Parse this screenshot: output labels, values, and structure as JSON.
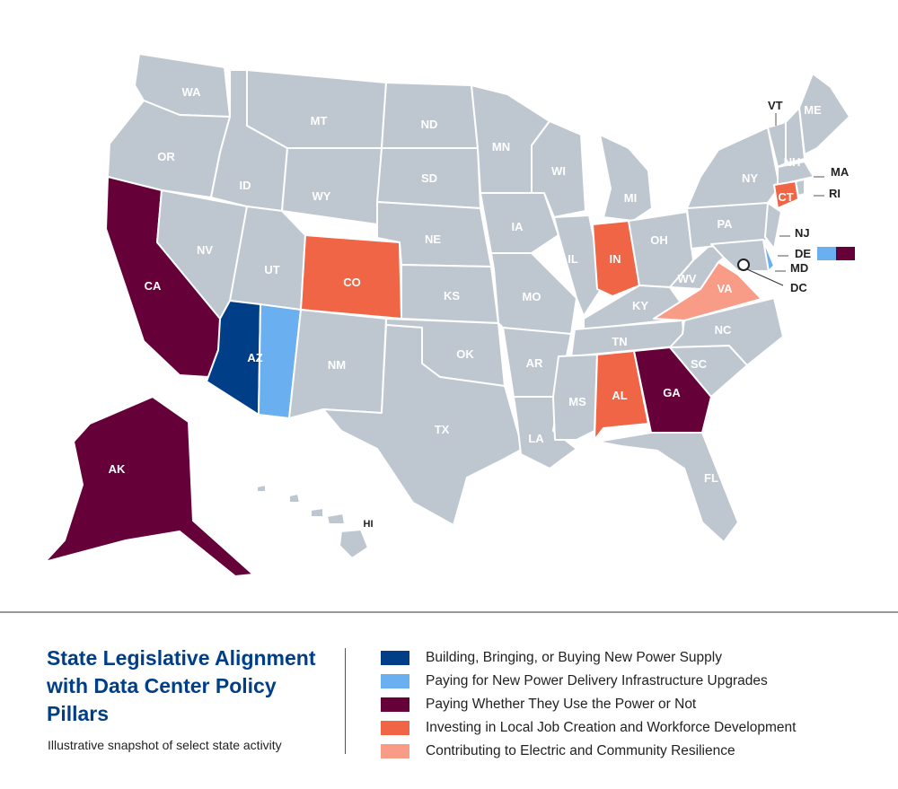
{
  "colors": {
    "default": "#bec6cf",
    "power_supply": "#003f87",
    "delivery_infrastructure": "#6aaff0",
    "pay_regardless": "#660038",
    "job_creation": "#f06545",
    "resilience": "#f89c88"
  },
  "legend": {
    "title": "State Legislative Alignment with Data Center Policy Pillars",
    "subtitle": "Illustrative snapshot of select state activity",
    "items": [
      {
        "key": "power_supply",
        "label": "Building, Bringing, or Buying New Power Supply"
      },
      {
        "key": "delivery_infrastructure",
        "label": "Paying for New Power Delivery Infrastructure Upgrades"
      },
      {
        "key": "pay_regardless",
        "label": "Paying Whether They Use the Power or Not"
      },
      {
        "key": "job_creation",
        "label": "Investing in Local Job Creation and Workforce Development"
      },
      {
        "key": "resilience",
        "label": "Contributing to Electric and Community Resilience"
      }
    ]
  },
  "states": {
    "WA": "default",
    "OR": "default",
    "CA": "pay_regardless",
    "NV": "default",
    "ID": "default",
    "MT": "default",
    "WY": "default",
    "UT": "default",
    "CO": "job_creation",
    "AZ": "power_supply+delivery_infrastructure",
    "NM": "default",
    "ND": "default",
    "SD": "default",
    "NE": "default",
    "KS": "default",
    "OK": "default",
    "TX": "default",
    "MN": "default",
    "IA": "default",
    "MO": "default",
    "AR": "default",
    "LA": "default",
    "WI": "default",
    "IL": "default",
    "IN": "job_creation",
    "MI": "default",
    "OH": "default",
    "KY": "default",
    "TN": "default",
    "MS": "default",
    "AL": "job_creation",
    "GA": "pay_regardless",
    "FL": "default",
    "SC": "default",
    "NC": "default",
    "VA": "resilience",
    "WV": "default",
    "PA": "default",
    "NY": "default",
    "VT": "default",
    "NH": "default",
    "ME": "default",
    "MA": "default",
    "CT": "job_creation",
    "RI": "default",
    "NJ": "default",
    "DE": "delivery_infrastructure+pay_regardless",
    "MD": "default",
    "DC": "default",
    "AK": "pay_regardless",
    "HI": "default"
  }
}
